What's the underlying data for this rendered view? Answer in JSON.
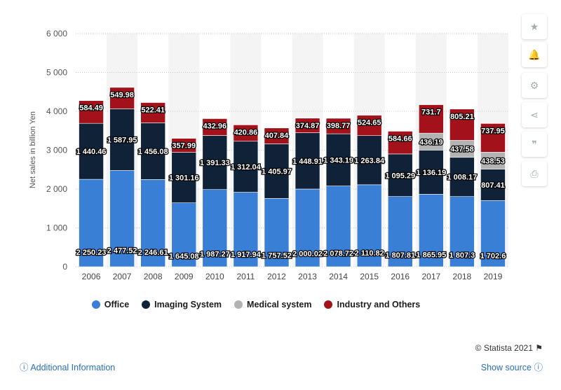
{
  "chart_data": {
    "type": "bar",
    "stacked": true,
    "categories": [
      "2006",
      "2007",
      "2008",
      "2009",
      "2010",
      "2011",
      "2012",
      "2013",
      "2014",
      "2015",
      "2016",
      "2017",
      "2018",
      "2019"
    ],
    "series": [
      {
        "name": "Office",
        "color": "#3a7fd6",
        "values": [
          2250.23,
          2477.52,
          2246.61,
          1645.08,
          1987.27,
          1917.94,
          1757.52,
          2000.02,
          2078.72,
          2110.82,
          1807.81,
          1865.95,
          1807.3,
          1702.6
        ],
        "labels": [
          "2 250.23",
          "2 477.52",
          "2 246.61",
          "1 645.08",
          "1 987.27",
          "1 917.94",
          "1 757.52",
          "2 000.02",
          "2 078.72",
          "2 110.82",
          "1 807.81",
          "1 865.95",
          "1 807.3",
          "1 702.6"
        ]
      },
      {
        "name": "Imaging System",
        "color": "#0f2237",
        "values": [
          1440.46,
          1587.95,
          1456.08,
          1301.16,
          1391.33,
          1312.04,
          1405.97,
          1448.91,
          1343.19,
          1263.84,
          1095.29,
          1136.19,
          1008.17,
          807.41
        ],
        "labels": [
          "1 440.46",
          "1 587.95",
          "1 456.08",
          "1 301.16",
          "1 391.33",
          "1 312.04",
          "1 405.97",
          "1 448.91",
          "1 343.19",
          "1 263.84",
          "1 095.29",
          "1 136.19",
          "1 008.17",
          "807.41"
        ]
      },
      {
        "name": "Medical system",
        "color": "#b3b3b3",
        "values": [
          null,
          null,
          null,
          null,
          null,
          null,
          null,
          null,
          null,
          null,
          null,
          436.19,
          437.58,
          438.53
        ],
        "labels": [
          "",
          "",
          "",
          "",
          "",
          "",
          "",
          "",
          "",
          "",
          "",
          "436.19",
          "437.58",
          "438.53"
        ]
      },
      {
        "name": "Industry and Others",
        "color": "#a3121b",
        "values": [
          584.49,
          549.98,
          522.41,
          357.99,
          432.96,
          420.86,
          407.84,
          374.87,
          398.77,
          524.65,
          584.66,
          731.7,
          805.21,
          737.95
        ],
        "labels": [
          "584.49",
          "549.98",
          "522.41",
          "357.99",
          "432.96",
          "420.86",
          "407.84",
          "374.87",
          "398.77",
          "524.65",
          "584.66",
          "731.7",
          "805.21",
          "737.95"
        ]
      }
    ],
    "ylabel": "Net sales in billion Yen",
    "ylim": [
      0,
      6000
    ],
    "yticks": [
      0,
      1000,
      2000,
      3000,
      4000,
      5000,
      6000
    ],
    "ytick_labels": [
      "0",
      "1 000",
      "2 000",
      "3 000",
      "4 000",
      "5 000",
      "6 000"
    ],
    "grid": true,
    "legend_position": "bottom"
  },
  "legend": {
    "office": "Office",
    "imaging": "Imaging System",
    "medical": "Medical system",
    "industry": "Industry and Others"
  },
  "footer": {
    "additional_info": "Additional Information",
    "show_source": "Show source",
    "credit": "© Statista 2021"
  },
  "sidebar_icons": [
    "star-icon",
    "bell-icon",
    "gear-icon",
    "share-icon",
    "quote-icon",
    "print-icon"
  ]
}
